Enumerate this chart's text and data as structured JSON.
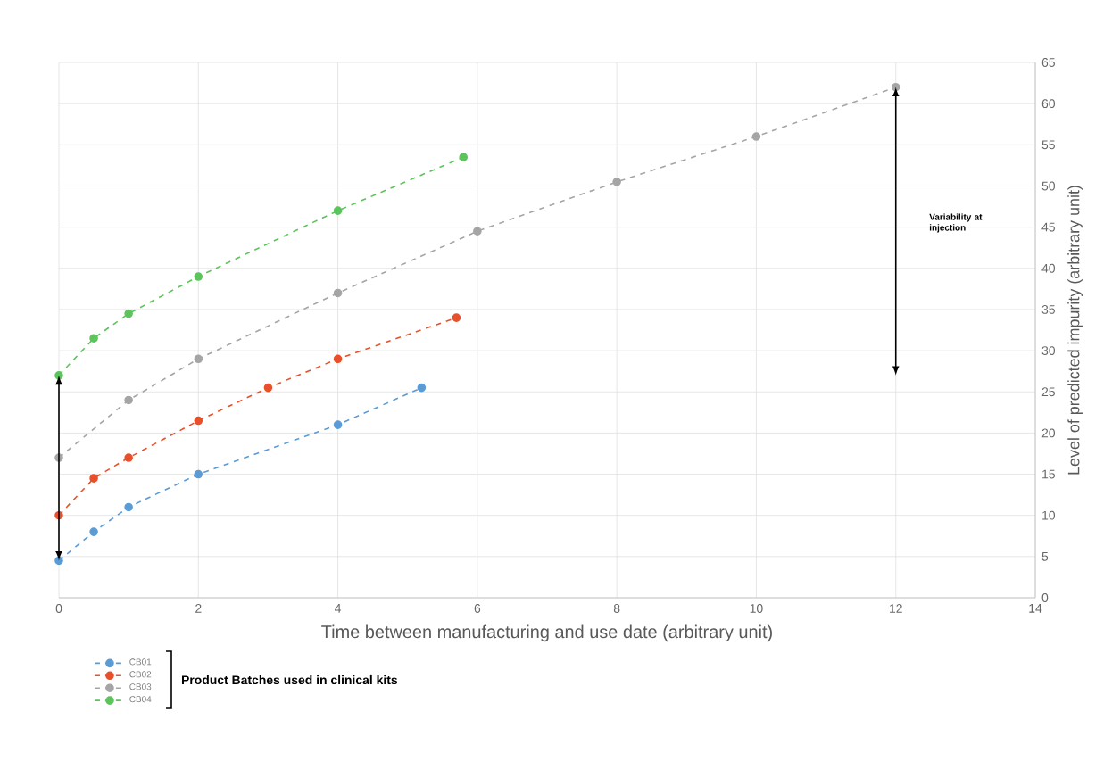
{
  "chart_data": {
    "type": "line",
    "xlabel": "Time between manufacturing and use date (arbitrary unit)",
    "ylabel": "Level of predicted impurity (arbitrary unit)",
    "legend_title": "Product Batches used in clinical kits",
    "xlim": [
      0,
      14
    ],
    "xticks": [
      0,
      2,
      4,
      6,
      8,
      10,
      12,
      14
    ],
    "ylim": [
      0,
      65
    ],
    "yticks": [
      0,
      5,
      10,
      15,
      20,
      25,
      30,
      35,
      40,
      45,
      50,
      55,
      60,
      65
    ],
    "grid": true,
    "legend": "bottom left",
    "marker": "circle",
    "line_style": "dashed",
    "annotations": [
      "Variability at injection"
    ],
    "series": [
      {
        "name": "CB01",
        "color": "#5b9bd5",
        "x": [
          0,
          0.5,
          1,
          2,
          4,
          5.2
        ],
        "values": [
          4.5,
          8,
          11,
          15,
          21,
          25.5
        ]
      },
      {
        "name": "CB02",
        "color": "#e8502a",
        "x": [
          0,
          0.5,
          1,
          2,
          3,
          4,
          5.7
        ],
        "values": [
          10,
          14.5,
          17,
          21.5,
          25.5,
          29,
          34
        ]
      },
      {
        "name": "CB03",
        "color": "#a5a5a5",
        "x": [
          0,
          1,
          2,
          4,
          6,
          8,
          10,
          12
        ],
        "values": [
          17,
          24,
          29,
          37,
          44.5,
          50.5,
          56,
          62
        ]
      },
      {
        "name": "CB04",
        "color": "#5cc45c",
        "x": [
          0,
          0.5,
          1,
          2,
          4,
          5.8
        ],
        "values": [
          27,
          31.5,
          34.5,
          39,
          47,
          53.5
        ]
      }
    ]
  }
}
